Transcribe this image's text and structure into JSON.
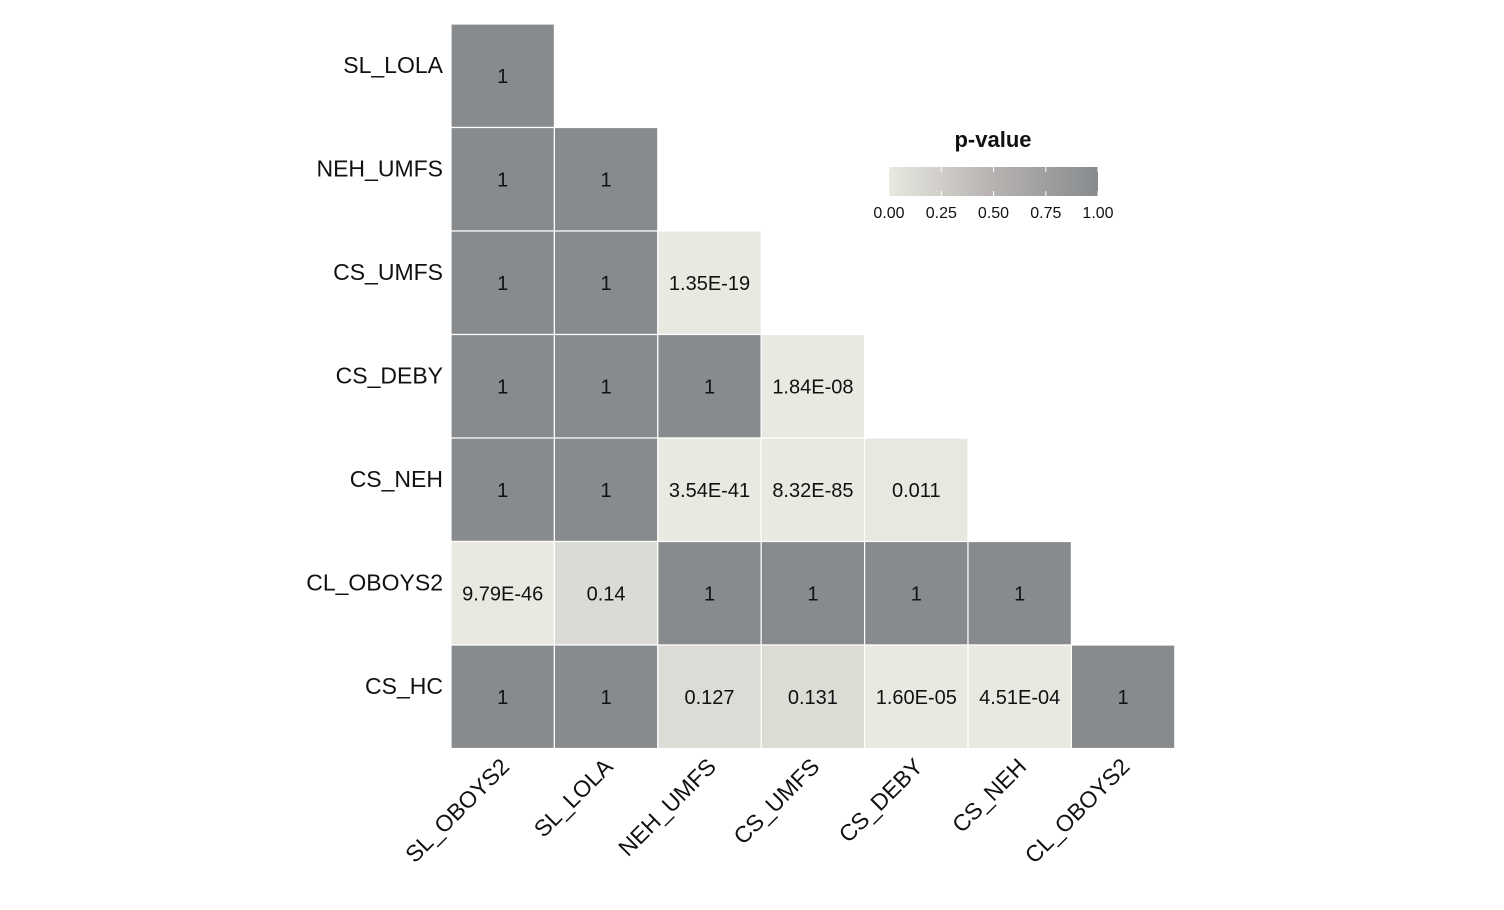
{
  "chart_data": {
    "type": "heatmap",
    "rows": [
      "SL_LOLA",
      "NEH_UMFS",
      "CS_UMFS",
      "CS_DEBY",
      "CS_NEH",
      "CL_OBOYS2",
      "CS_HC"
    ],
    "columns": [
      "SL_OBOYS2",
      "SL_LOLA",
      "NEH_UMFS",
      "CS_UMFS",
      "CS_DEBY",
      "CS_NEH",
      "CL_OBOYS2"
    ],
    "cells": [
      [
        "1"
      ],
      [
        "1",
        "1"
      ],
      [
        "1",
        "1",
        "1.35E-19"
      ],
      [
        "1",
        "1",
        "1",
        "1.84E-08"
      ],
      [
        "1",
        "1",
        "3.54E-41",
        "8.32E-85",
        "0.011"
      ],
      [
        "9.79E-46",
        "0.14",
        "1",
        "1",
        "1",
        "1"
      ],
      [
        "1",
        "1",
        "0.127",
        "0.131",
        "1.60E-05",
        "4.51E-04",
        "1"
      ]
    ],
    "legend": {
      "title": "p-value",
      "ticks": [
        "0.00",
        "0.25",
        "0.50",
        "0.75",
        "1.00"
      ],
      "range": [
        0,
        1
      ],
      "color_low": "#e9e9e1",
      "color_mid": "#b7b2b1",
      "color_high": "#878b8e"
    }
  }
}
